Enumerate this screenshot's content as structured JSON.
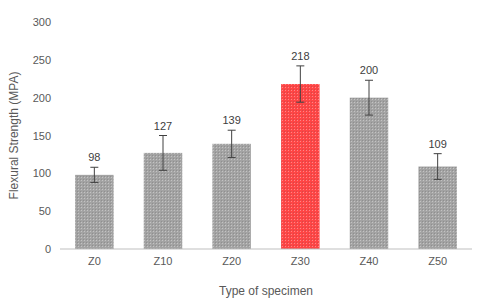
{
  "chart_data": {
    "type": "bar",
    "x_label": "Type of specimen",
    "y_label": "Flexural Strength (MPA)",
    "categories": [
      "Z0",
      "Z10",
      "Z20",
      "Z30",
      "Z40",
      "Z50"
    ],
    "values": [
      98,
      127,
      139,
      218,
      200,
      109
    ],
    "errors": [
      10,
      23,
      18,
      24,
      23,
      17
    ],
    "colors": [
      "#a3a3a3",
      "#a3a3a3",
      "#a3a3a3",
      "#ff4545",
      "#a3a3a3",
      "#a3a3a3"
    ],
    "ylim": [
      0,
      300
    ],
    "yticks": [
      0,
      50,
      100,
      150,
      200,
      250,
      300
    ],
    "grid": false,
    "data_labels": true
  }
}
